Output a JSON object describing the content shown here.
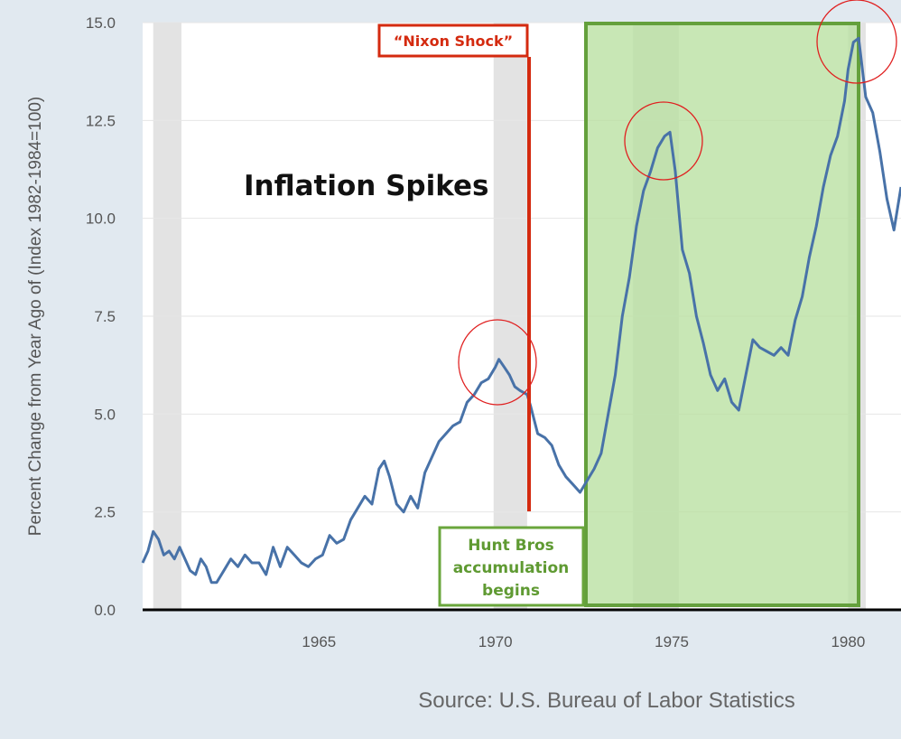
{
  "chart_data": {
    "type": "line",
    "title": "",
    "ylabel": "Percent Change from Year Ago of (Index 1982-1984=100)",
    "xlabel": "",
    "source": "Source: U.S. Bureau of Labor Statistics",
    "xlim": [
      1960.0,
      1981.5
    ],
    "ylim": [
      0,
      15
    ],
    "grid": true,
    "y_ticks": [
      "0.0",
      "2.5",
      "5.0",
      "7.5",
      "10.0",
      "12.5",
      "15.0"
    ],
    "x_ticks": [
      "1965",
      "1970",
      "1975",
      "1980"
    ],
    "line_color": "#4872a8",
    "recessions": [
      {
        "start": 1960.3,
        "end": 1961.1
      },
      {
        "start": 1969.95,
        "end": 1970.9
      },
      {
        "start": 1973.9,
        "end": 1975.2
      },
      {
        "start": 1980.0,
        "end": 1980.5
      }
    ],
    "series": [
      {
        "x": [
          1960.0,
          1960.15,
          1960.3,
          1960.45,
          1960.6,
          1960.75,
          1960.9,
          1961.05,
          1961.2,
          1961.35,
          1961.5,
          1961.65,
          1961.8,
          1961.95,
          1962.1,
          1962.3,
          1962.5,
          1962.7,
          1962.9,
          1963.1,
          1963.3,
          1963.5,
          1963.7,
          1963.9,
          1964.1,
          1964.3,
          1964.5,
          1964.7,
          1964.9,
          1965.1,
          1965.3,
          1965.5,
          1965.7,
          1965.9,
          1966.1,
          1966.3,
          1966.5,
          1966.7,
          1966.85,
          1967.0,
          1967.2,
          1967.4,
          1967.6,
          1967.8,
          1968.0,
          1968.2,
          1968.4,
          1968.6,
          1968.8,
          1969.0,
          1969.2,
          1969.4,
          1969.6,
          1969.8,
          1970.0,
          1970.1,
          1970.25,
          1970.4,
          1970.55,
          1970.7,
          1970.9,
          1971.0,
          1971.2,
          1971.4,
          1971.6,
          1971.8,
          1972.0,
          1972.2,
          1972.4,
          1972.6,
          1972.8,
          1973.0,
          1973.2,
          1973.4,
          1973.6,
          1973.8,
          1974.0,
          1974.2,
          1974.4,
          1974.6,
          1974.8,
          1974.95,
          1975.1,
          1975.3,
          1975.5,
          1975.7,
          1975.9,
          1976.1,
          1976.3,
          1976.5,
          1976.7,
          1976.9,
          1977.1,
          1977.3,
          1977.5,
          1977.7,
          1977.9,
          1978.1,
          1978.3,
          1978.5,
          1978.7,
          1978.9,
          1979.1,
          1979.3,
          1979.5,
          1979.7,
          1979.9,
          1980.0,
          1980.15,
          1980.3,
          1980.5,
          1980.7,
          1980.9,
          1981.1,
          1981.3,
          1981.5
        ],
        "y": [
          1.2,
          1.5,
          2.0,
          1.8,
          1.4,
          1.5,
          1.3,
          1.6,
          1.3,
          1.0,
          0.9,
          1.3,
          1.1,
          0.7,
          0.7,
          1.0,
          1.3,
          1.1,
          1.4,
          1.2,
          1.2,
          0.9,
          1.6,
          1.1,
          1.6,
          1.4,
          1.2,
          1.1,
          1.3,
          1.4,
          1.9,
          1.7,
          1.8,
          2.3,
          2.6,
          2.9,
          2.7,
          3.6,
          3.8,
          3.4,
          2.7,
          2.5,
          2.9,
          2.6,
          3.5,
          3.9,
          4.3,
          4.5,
          4.7,
          4.8,
          5.3,
          5.5,
          5.8,
          5.9,
          6.2,
          6.4,
          6.2,
          6.0,
          5.7,
          5.6,
          5.5,
          5.2,
          4.5,
          4.4,
          4.2,
          3.7,
          3.4,
          3.2,
          3.0,
          3.3,
          3.6,
          4.0,
          5.0,
          6.0,
          7.5,
          8.5,
          9.8,
          10.7,
          11.2,
          11.8,
          12.1,
          12.2,
          11.2,
          9.2,
          8.6,
          7.5,
          6.8,
          6.0,
          5.6,
          5.9,
          5.3,
          5.1,
          6.0,
          6.9,
          6.7,
          6.6,
          6.5,
          6.7,
          6.5,
          7.4,
          8.0,
          9.0,
          9.8,
          10.8,
          11.6,
          12.1,
          13.0,
          13.8,
          14.5,
          14.6,
          13.1,
          12.7,
          11.7,
          10.5,
          9.7,
          10.8
        ]
      }
    ]
  },
  "annotations": {
    "big_title": "Inflation Spikes",
    "nixon_shock": "“Nixon Shock”",
    "hunt_line1": "Hunt Bros",
    "hunt_line2": "accumulation",
    "hunt_line3": "begins"
  },
  "colors": {
    "highlight_fill": "#b9e0a0",
    "highlight_stroke": "#64a03c",
    "nixon_red": "#d42a0f",
    "circle_red": "#e02020"
  }
}
